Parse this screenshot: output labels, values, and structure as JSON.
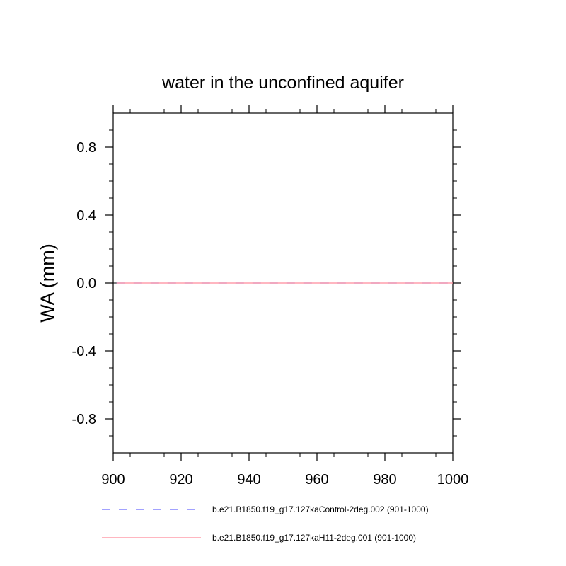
{
  "chart_data": {
    "type": "line",
    "title": "water in the unconfined aquifer",
    "xlabel": "",
    "ylabel": "WA  (mm)",
    "xlim": [
      900,
      1000
    ],
    "ylim": [
      -1.0,
      1.0
    ],
    "x_ticks": [
      900,
      920,
      940,
      960,
      980,
      1000
    ],
    "x_tick_labels": [
      "900",
      "920",
      "940",
      "960",
      "980",
      "1000"
    ],
    "y_ticks": [
      -0.8,
      -0.4,
      0.0,
      0.4,
      0.8
    ],
    "y_tick_labels": [
      "-0.8",
      "-0.4",
      "0.0",
      "0.4",
      "0.8"
    ],
    "grid": false,
    "legend_position": "bottom",
    "series": [
      {
        "name": "b.e21.B1850.f19_g17.127kaControl-2deg.002 (901-1000)",
        "color": "#6a6aff",
        "line_style": "dashed",
        "x": [
          901,
          1000
        ],
        "y": [
          0.0,
          0.0
        ]
      },
      {
        "name": "b.e21.B1850.f19_g17.127kaH11-2deg.001 (901-1000)",
        "color": "#ff8a9a",
        "line_style": "solid",
        "x": [
          901,
          1000
        ],
        "y": [
          0.0,
          0.0
        ]
      }
    ]
  }
}
